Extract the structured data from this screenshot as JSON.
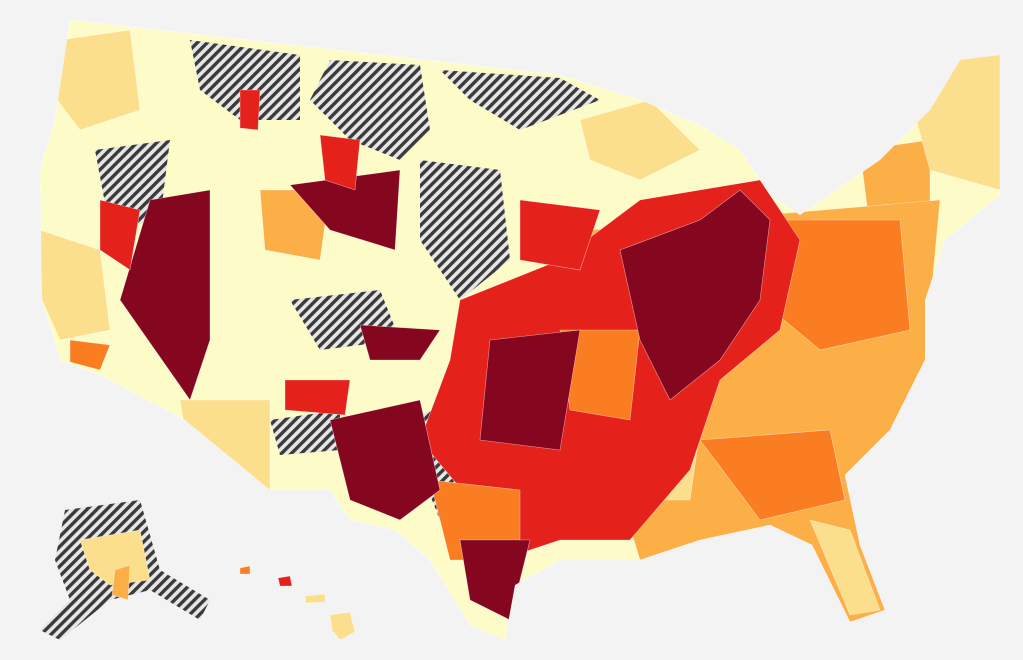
{
  "map": {
    "palette": [
      "#fdfcc9",
      "#fcdf8c",
      "#fcae47",
      "#fb7d22",
      "#e4221b",
      "#85061f"
    ]
  }
}
